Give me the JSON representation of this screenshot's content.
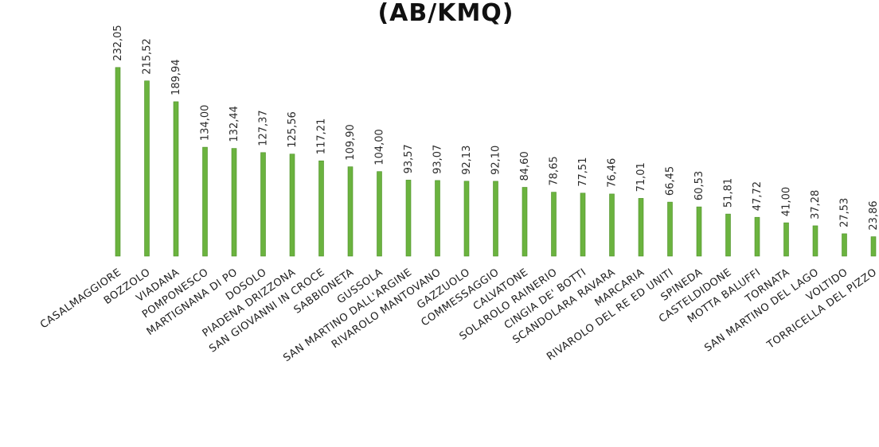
{
  "chart_data": {
    "type": "bar",
    "title": "(AB/KMQ)",
    "categories": [
      "CASALMAGGIORE",
      "BOZZOLO",
      "VIADANA",
      "POMPONESCO",
      "MARTIGNANA DI PO",
      "DOSOLO",
      "PIADENA DRIZZONA",
      "SAN GIOVANNI IN CROCE",
      "SABBIONETA",
      "GUSSOLA",
      "SAN MARTINO DALL'ARGINE",
      "RIVAROLO MANTOVANO",
      "GAZZUOLO",
      "COMMESSAGGIO",
      "CALVATONE",
      "SOLAROLO RAINERIO",
      "CINGIA DE' BOTTI",
      "SCANDOLARA RAVARA",
      "MARCARIA",
      "RIVAROLO DEL RE ED UNITI",
      "SPINEDA",
      "CASTELDIDONE",
      "MOTTA BALUFFI",
      "TORNATA",
      "SAN MARTINO DEL LAGO",
      "VOLTIDO",
      "TORRICELLA DEL PIZZO"
    ],
    "values": [
      232.05,
      215.52,
      189.94,
      134.0,
      132.44,
      127.37,
      125.56,
      117.21,
      109.9,
      104.0,
      93.57,
      93.07,
      92.13,
      92.1,
      84.6,
      78.65,
      77.51,
      76.46,
      71.01,
      66.45,
      60.53,
      51.81,
      47.72,
      41.0,
      37.28,
      27.53,
      23.86
    ],
    "value_labels": [
      "232,05",
      "215,52",
      "189,94",
      "134,00",
      "132,44",
      "127,37",
      "125,56",
      "117,21",
      "109,90",
      "104,00",
      "93,57",
      "93,07",
      "92,13",
      "92,10",
      "84,60",
      "78,65",
      "77,51",
      "76,46",
      "71,01",
      "66,45",
      "60,53",
      "51,81",
      "47,72",
      "41,00",
      "37,28",
      "27,53",
      "23,86"
    ],
    "ylim": [
      0,
      240
    ],
    "grid": false,
    "bar_color": "#6bb33f",
    "bar_edge_color": "#4c8f26"
  }
}
